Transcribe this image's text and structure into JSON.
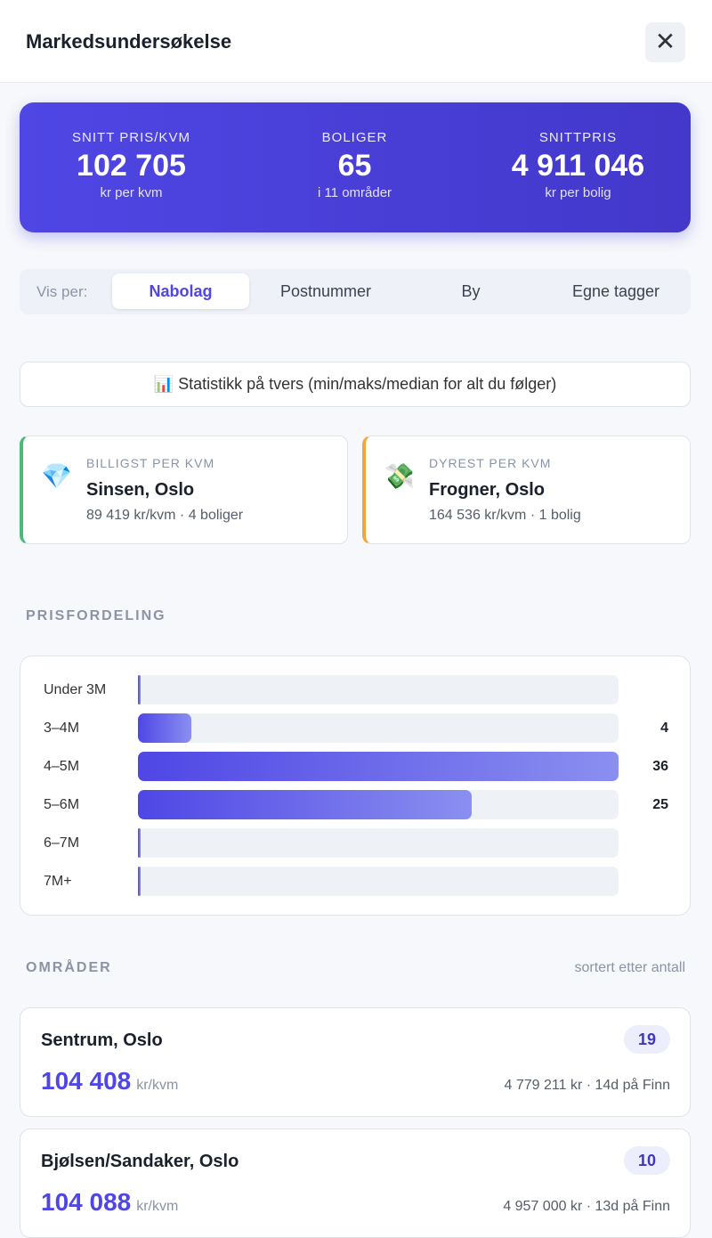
{
  "header": {
    "title": "Markedsundersøkelse"
  },
  "summary": [
    {
      "label": "SNITT PRIS/KVM",
      "value": "102 705",
      "sub": "kr per kvm"
    },
    {
      "label": "BOLIGER",
      "value": "65",
      "sub": "i 11 områder"
    },
    {
      "label": "SNITTPRIS",
      "value": "4 911 046",
      "sub": "kr per bolig"
    }
  ],
  "tabs": {
    "label": "Vis per:",
    "options": [
      "Nabolag",
      "Postnummer",
      "By",
      "Egne tagger"
    ],
    "active": 0
  },
  "stats_button": "📊 Statistikk på tvers (min/maks/median for alt du følger)",
  "extremes": [
    {
      "icon": "💎",
      "label": "BILLIGST PER KVM",
      "name": "Sinsen, Oslo",
      "detail": "89 419 kr/kvm · 4 boliger",
      "color": "#48bb78"
    },
    {
      "icon": "💸",
      "label": "DYREST PER KVM",
      "name": "Frogner, Oslo",
      "detail": "164 536 kr/kvm · 1 bolig",
      "color": "#f0a73a"
    }
  ],
  "distribution": {
    "title": "PRISFORDELING",
    "categories": [
      "Under 3M",
      "3–4M",
      "4–5M",
      "5–6M",
      "6–7M",
      "7M+"
    ],
    "values": [
      0,
      4,
      36,
      25,
      0,
      0
    ]
  },
  "areas": {
    "title": "OMRÅDER",
    "sort": "sortert etter antall",
    "items": [
      {
        "name": "Sentrum, Oslo",
        "count": "19",
        "price": "104 408",
        "unit": "kr/kvm",
        "detail": "4 779 211 kr · 14d på Finn"
      },
      {
        "name": "Bjølsen/Sandaker, Oslo",
        "count": "10",
        "price": "104 088",
        "unit": "kr/kvm",
        "detail": "4 957 000 kr · 13d på Finn"
      }
    ]
  }
}
